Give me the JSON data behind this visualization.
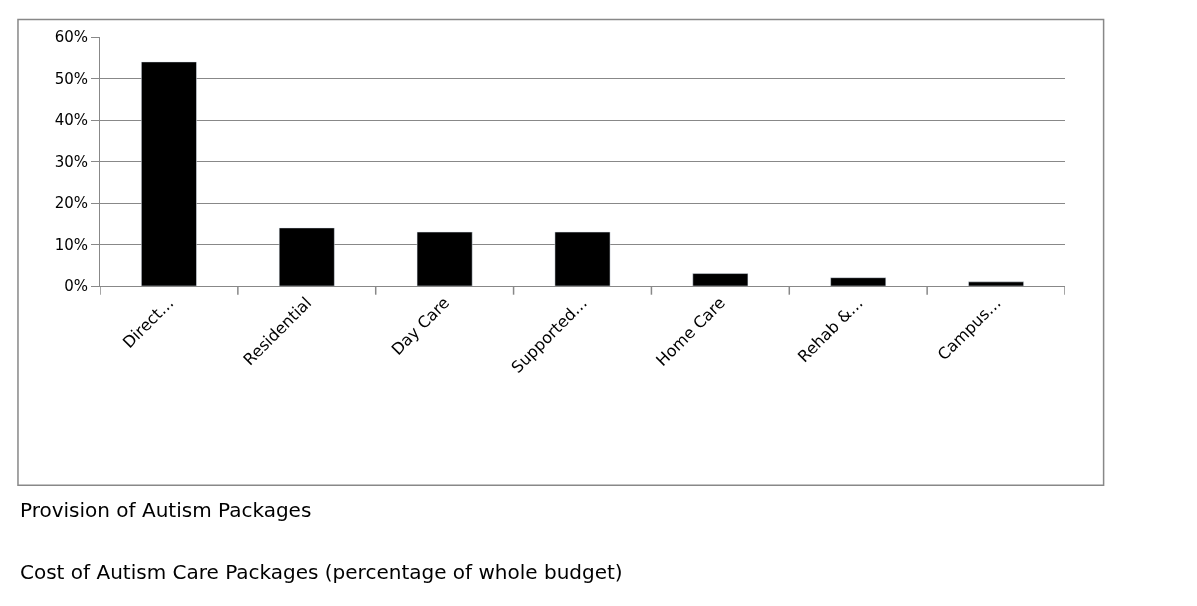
{
  "chart_data": {
    "type": "bar",
    "categories": [
      "Direct…",
      "Residential",
      "Day Care",
      "Supported…",
      "Home Care",
      "Rehab &…",
      "Campus…"
    ],
    "values": [
      54,
      14,
      13,
      13,
      3,
      2,
      1
    ],
    "color": "#000000",
    "ylim": [
      0,
      60
    ],
    "yticks": [
      {
        "value": 0,
        "label": "0%"
      },
      {
        "value": 10,
        "label": "10%"
      },
      {
        "value": 20,
        "label": "20%"
      },
      {
        "value": 30,
        "label": "30%"
      },
      {
        "value": 40,
        "label": "40%"
      },
      {
        "value": 50,
        "label": "50%"
      },
      {
        "value": 60,
        "label": "60%"
      }
    ],
    "grid": "y",
    "annotations": [
      "Provision of Autism Packages",
      "Cost of Autism Care Packages (percentage of whole budget)"
    ]
  }
}
